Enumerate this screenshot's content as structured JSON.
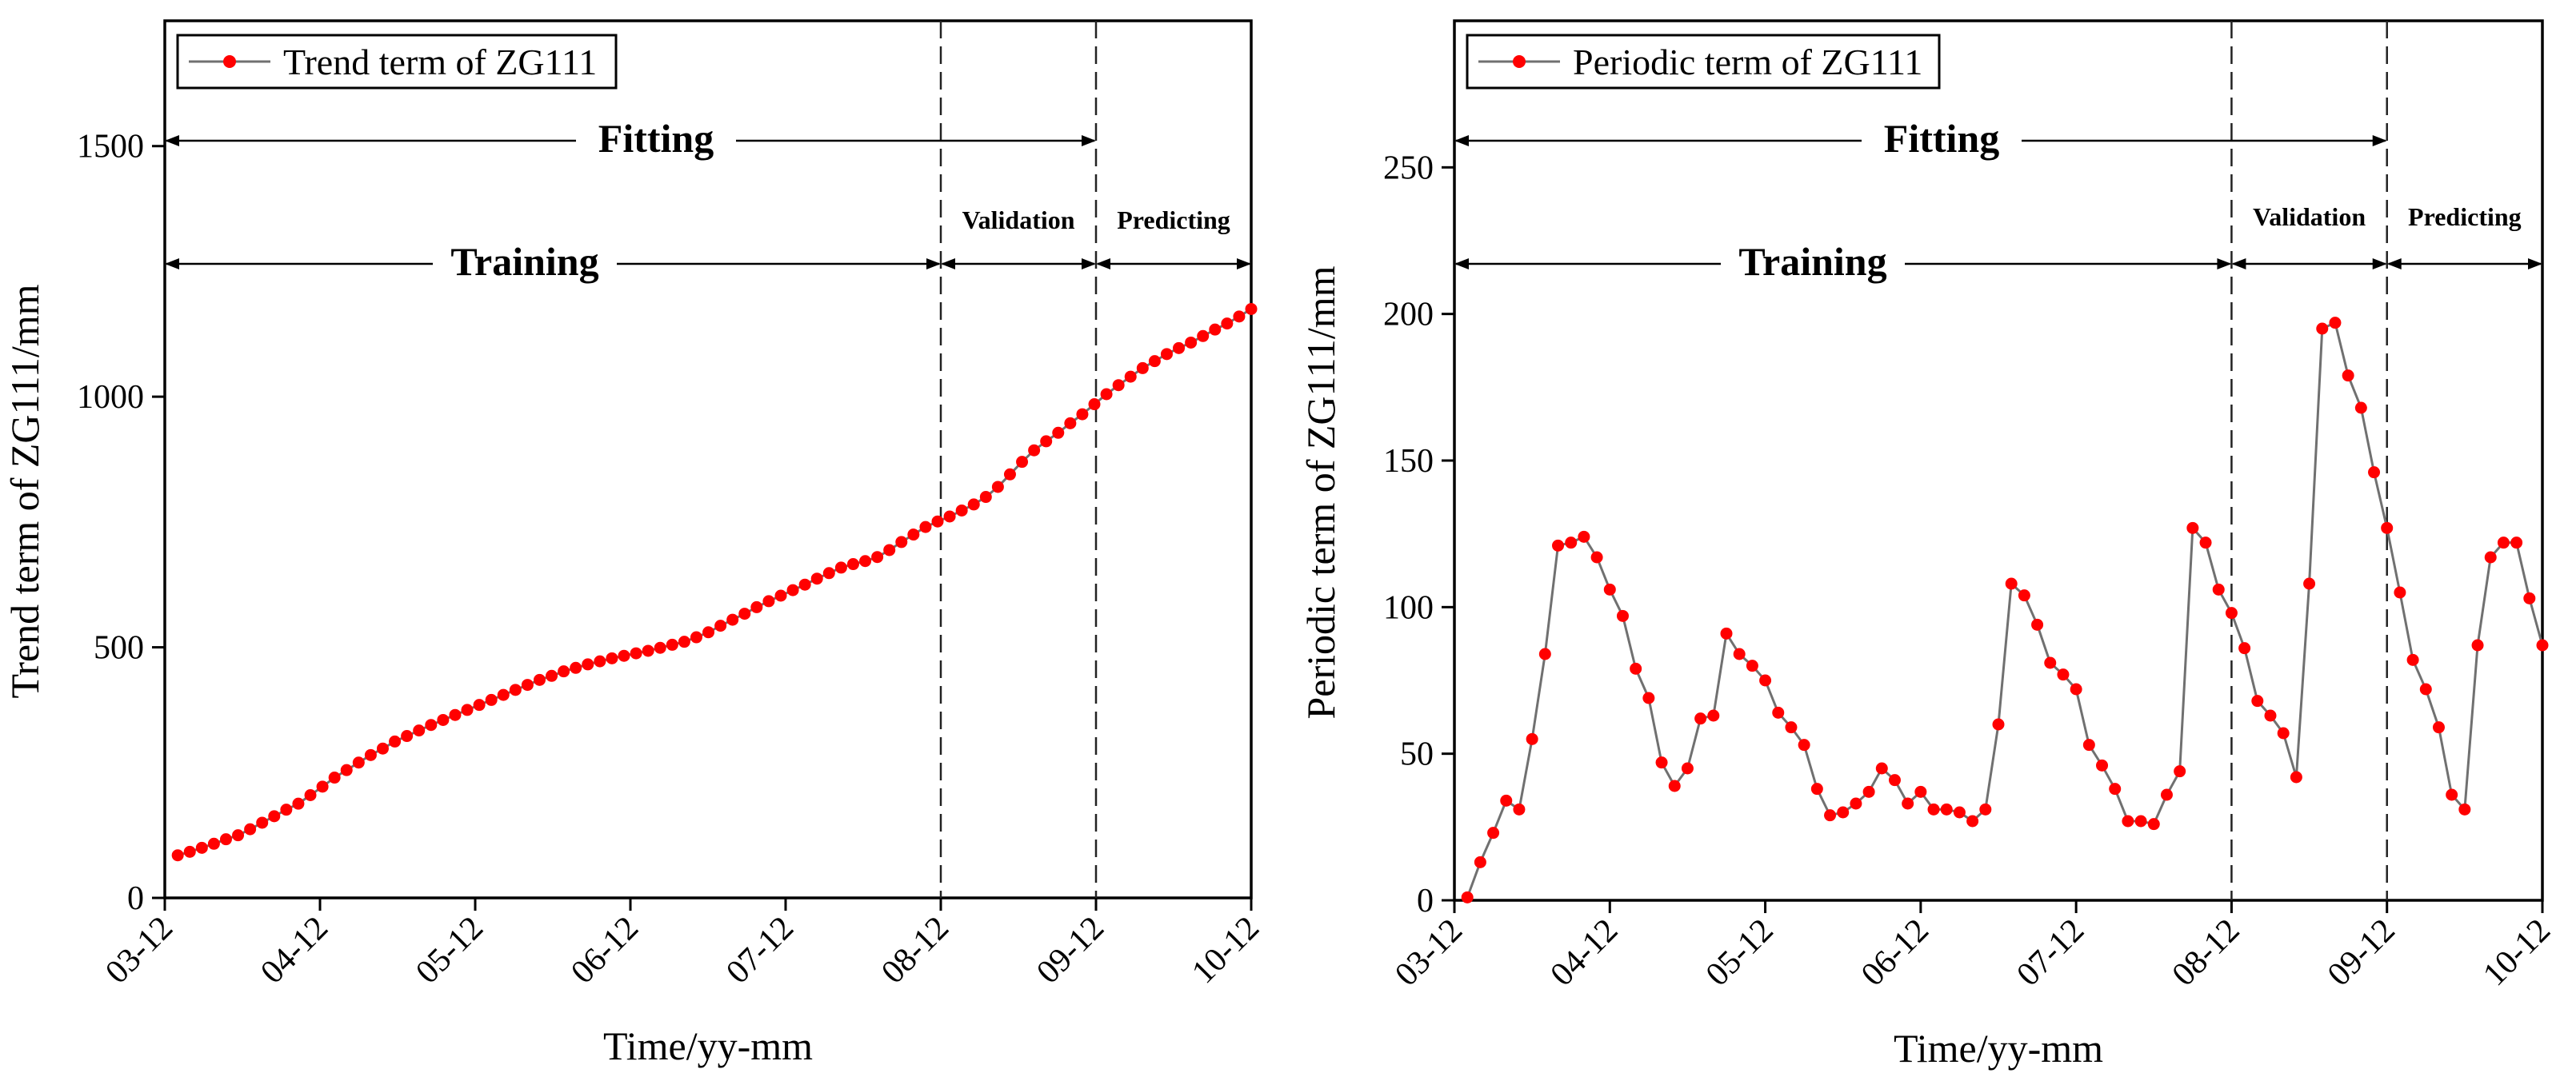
{
  "colors": {
    "marker": "#ff0000",
    "line": "#707070",
    "axis": "#000000"
  },
  "chart_data": [
    {
      "type": "line",
      "legend": "Trend term of ZG111",
      "legend_position": "top-left",
      "ylabel": "Trend term of ZG111/mm",
      "xlabel": "Time/yy-mm",
      "ylim": [
        0,
        1750
      ],
      "yticks": [
        0,
        500,
        1000,
        1500
      ],
      "xticks": [
        "03-12",
        "04-12",
        "05-12",
        "06-12",
        "07-12",
        "08-12",
        "09-12",
        "10-12"
      ],
      "x_range_months": 84,
      "phases": {
        "fitting": "Fitting",
        "training": "Training",
        "validation": "Validation",
        "predicting": "Predicting"
      },
      "dividers": [
        "08-12",
        "09-12"
      ],
      "series": [
        {
          "name": "Trend term of ZG111",
          "x_start": "04-01",
          "values": [
            85,
            92,
            100,
            108,
            117,
            125,
            137,
            150,
            163,
            176,
            188,
            205,
            222,
            240,
            255,
            270,
            285,
            298,
            312,
            323,
            334,
            345,
            355,
            365,
            375,
            385,
            395,
            405,
            415,
            425,
            435,
            443,
            452,
            459,
            466,
            472,
            478,
            483,
            488,
            493,
            499,
            505,
            511,
            520,
            530,
            543,
            555,
            567,
            580,
            592,
            603,
            614,
            625,
            637,
            648,
            659,
            666,
            672,
            680,
            694,
            710,
            725,
            740,
            751,
            761,
            773,
            785,
            800,
            820,
            845,
            870,
            893,
            911,
            928,
            947,
            965,
            985,
            1005,
            1023,
            1040,
            1057,
            1071,
            1085,
            1097,
            1108,
            1121,
            1134,
            1146,
            1160,
            1175
          ]
        }
      ]
    },
    {
      "type": "line",
      "legend": "Periodic term of ZG111",
      "legend_position": "top-left",
      "ylabel": "Periodic term of ZG111/mm",
      "xlabel": "Time/yy-mm",
      "ylim": [
        0,
        300
      ],
      "yticks": [
        0,
        50,
        100,
        150,
        200,
        250
      ],
      "xticks": [
        "03-12",
        "04-12",
        "05-12",
        "06-12",
        "07-12",
        "08-12",
        "09-12",
        "10-12"
      ],
      "x_range_months": 84,
      "phases": {
        "fitting": "Fitting",
        "training": "Training",
        "validation": "Validation",
        "predicting": "Predicting"
      },
      "dividers": [
        "08-12",
        "09-12"
      ],
      "series": [
        {
          "name": "Periodic term of ZG111",
          "x_start": "04-01",
          "values": [
            1,
            13,
            23,
            34,
            31,
            55,
            84,
            121,
            122,
            124,
            117,
            106,
            97,
            79,
            69,
            47,
            39,
            45,
            62,
            63,
            91,
            84,
            80,
            75,
            64,
            59,
            53,
            38,
            29,
            30,
            33,
            37,
            45,
            41,
            33,
            37,
            31,
            31,
            30,
            27,
            31,
            60,
            108,
            104,
            94,
            81,
            77,
            72,
            53,
            46,
            38,
            27,
            27,
            26,
            36,
            44,
            127,
            122,
            106,
            98,
            86,
            68,
            63,
            57,
            42,
            108,
            195,
            197,
            179,
            168,
            146,
            127,
            105,
            82,
            72,
            59,
            36,
            31,
            87,
            117,
            122,
            122,
            103,
            87
          ]
        }
      ]
    }
  ]
}
